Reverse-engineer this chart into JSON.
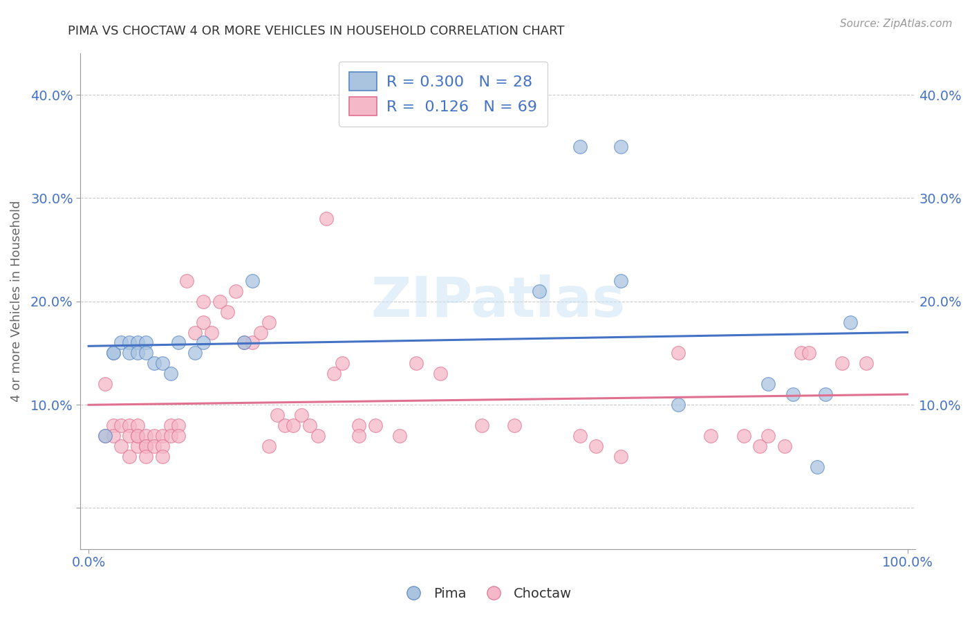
{
  "title": "PIMA VS CHOCTAW 4 OR MORE VEHICLES IN HOUSEHOLD CORRELATION CHART",
  "source_text": "Source: ZipAtlas.com",
  "ylabel": "4 or more Vehicles in Household",
  "xlabel": "",
  "xlim": [
    -0.01,
    1.01
  ],
  "ylim": [
    -0.04,
    0.44
  ],
  "xticks": [
    0.0,
    1.0
  ],
  "xticklabels": [
    "0.0%",
    "100.0%"
  ],
  "yticks": [
    0.0,
    0.1,
    0.2,
    0.3,
    0.4
  ],
  "yticklabels": [
    "",
    "10.0%",
    "20.0%",
    "30.0%",
    "40.0%"
  ],
  "pima_color": "#aac4e0",
  "choctaw_color": "#f5b8c8",
  "pima_edge_color": "#5585c5",
  "choctaw_edge_color": "#e07090",
  "pima_line_color": "#4472c4",
  "choctaw_line_color": "#e07090",
  "R_pima": 0.3,
  "N_pima": 28,
  "R_choctaw": 0.126,
  "N_choctaw": 69,
  "watermark": "ZIPatlas",
  "pima_x": [
    0.02,
    0.03,
    0.03,
    0.04,
    0.05,
    0.05,
    0.06,
    0.06,
    0.07,
    0.07,
    0.08,
    0.09,
    0.1,
    0.11,
    0.13,
    0.14,
    0.19,
    0.2,
    0.55,
    0.6,
    0.65,
    0.65,
    0.72,
    0.83,
    0.86,
    0.89,
    0.9,
    0.93
  ],
  "pima_y": [
    0.07,
    0.15,
    0.15,
    0.16,
    0.16,
    0.15,
    0.16,
    0.15,
    0.16,
    0.15,
    0.14,
    0.14,
    0.13,
    0.16,
    0.15,
    0.16,
    0.16,
    0.22,
    0.21,
    0.35,
    0.35,
    0.22,
    0.1,
    0.12,
    0.11,
    0.04,
    0.11,
    0.18
  ],
  "choctaw_x": [
    0.02,
    0.02,
    0.03,
    0.03,
    0.04,
    0.04,
    0.05,
    0.05,
    0.05,
    0.06,
    0.06,
    0.06,
    0.06,
    0.07,
    0.07,
    0.07,
    0.07,
    0.08,
    0.08,
    0.09,
    0.09,
    0.09,
    0.1,
    0.1,
    0.11,
    0.11,
    0.12,
    0.13,
    0.14,
    0.14,
    0.15,
    0.16,
    0.17,
    0.18,
    0.19,
    0.2,
    0.21,
    0.22,
    0.22,
    0.23,
    0.24,
    0.25,
    0.26,
    0.27,
    0.28,
    0.29,
    0.3,
    0.31,
    0.33,
    0.33,
    0.35,
    0.38,
    0.4,
    0.43,
    0.48,
    0.52,
    0.6,
    0.62,
    0.65,
    0.72,
    0.76,
    0.8,
    0.82,
    0.83,
    0.85,
    0.87,
    0.88,
    0.92,
    0.95
  ],
  "choctaw_y": [
    0.12,
    0.07,
    0.08,
    0.07,
    0.08,
    0.06,
    0.08,
    0.07,
    0.05,
    0.06,
    0.07,
    0.08,
    0.07,
    0.06,
    0.07,
    0.06,
    0.05,
    0.07,
    0.06,
    0.07,
    0.06,
    0.05,
    0.08,
    0.07,
    0.08,
    0.07,
    0.22,
    0.17,
    0.2,
    0.18,
    0.17,
    0.2,
    0.19,
    0.21,
    0.16,
    0.16,
    0.17,
    0.18,
    0.06,
    0.09,
    0.08,
    0.08,
    0.09,
    0.08,
    0.07,
    0.28,
    0.13,
    0.14,
    0.08,
    0.07,
    0.08,
    0.07,
    0.14,
    0.13,
    0.08,
    0.08,
    0.07,
    0.06,
    0.05,
    0.15,
    0.07,
    0.07,
    0.06,
    0.07,
    0.06,
    0.15,
    0.15,
    0.14,
    0.14
  ],
  "background_color": "#ffffff",
  "grid_color": "#bbbbbb",
  "title_color": "#333333",
  "axis_label_color": "#666666"
}
